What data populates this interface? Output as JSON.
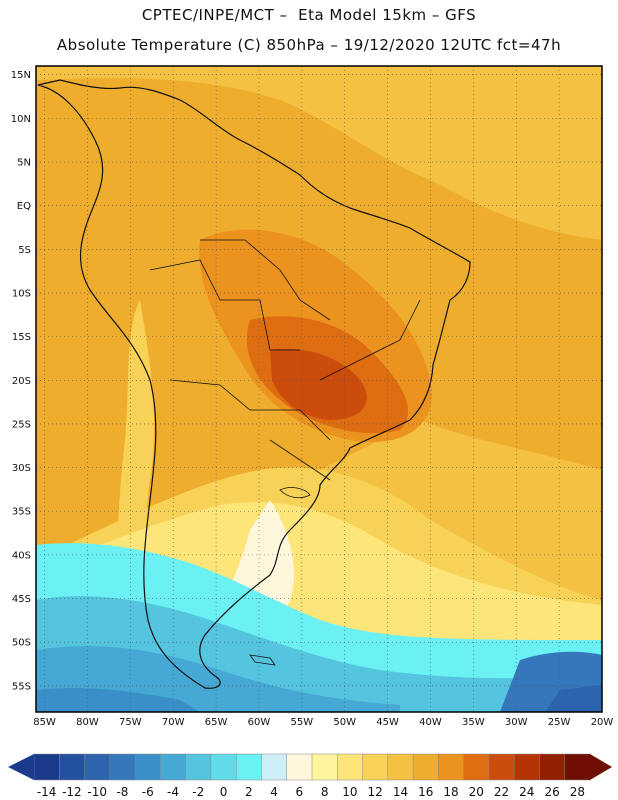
{
  "header": {
    "line1": "CPTEC/INPE/MCT –  Eta Model 15km – GFS",
    "line2": "Absolute Temperature (C) 850hPa – 19/12/2020 12UTC fct=47h"
  },
  "map": {
    "lat_labels": [
      "15N",
      "10N",
      "5N",
      "EQ",
      "5S",
      "10S",
      "15S",
      "20S",
      "25S",
      "30S",
      "35S",
      "40S",
      "45S",
      "50S",
      "55S"
    ],
    "lon_labels": [
      "85W",
      "80W",
      "75W",
      "70W",
      "65W",
      "60W",
      "55W",
      "50W",
      "45W",
      "40W",
      "35W",
      "30W",
      "25W",
      "20W"
    ],
    "extent": {
      "lon": [
        -86,
        -20
      ],
      "lat": [
        -58,
        16
      ]
    }
  },
  "colorbar": {
    "labels": [
      "-14",
      "-12",
      "-10",
      "-8",
      "-6",
      "-4",
      "-2",
      "0",
      "2",
      "4",
      "6",
      "8",
      "10",
      "12",
      "14",
      "16",
      "18",
      "20",
      "22",
      "24",
      "26",
      "28"
    ],
    "colors": [
      "#1a3b8c",
      "#24519f",
      "#2e63ad",
      "#3477bb",
      "#3b8fc8",
      "#46a8d4",
      "#55c4de",
      "#5fdce8",
      "#6bf0f4",
      "#cfeff8",
      "#fff7dc",
      "#fff59f",
      "#fde57a",
      "#f8d256",
      "#f4c143",
      "#efad2e",
      "#eb931e",
      "#de6d12",
      "#cc4c0b",
      "#b33406",
      "#922002",
      "#6e0f01"
    ]
  }
}
